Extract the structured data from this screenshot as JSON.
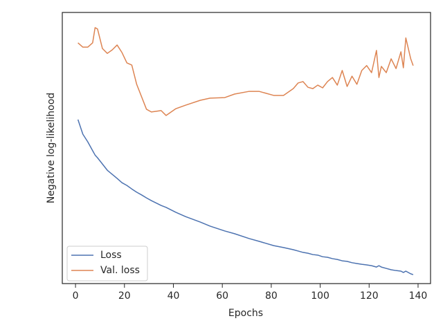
{
  "chart_data": {
    "type": "line",
    "xlabel": "Epochs",
    "ylabel": "Negative log-likelihood",
    "x": [
      1,
      3,
      5,
      7,
      8,
      9,
      11,
      13,
      15,
      17,
      19,
      21,
      23,
      25,
      27,
      29,
      31,
      35,
      37,
      41,
      45,
      51,
      55,
      61,
      65,
      71,
      75,
      81,
      85,
      89,
      91,
      93,
      95,
      97,
      99,
      101,
      103,
      105,
      107,
      109,
      111,
      113,
      115,
      117,
      119,
      121,
      123,
      124,
      125,
      127,
      129,
      131,
      133,
      134,
      135,
      137,
      138
    ],
    "series": [
      {
        "name": "Loss",
        "color": "#4c72b0",
        "values": [
          60.5,
          55.1,
          52.3,
          49.0,
          47.4,
          46.4,
          44.1,
          41.8,
          40.3,
          38.8,
          37.2,
          36.2,
          34.9,
          33.7,
          32.7,
          31.6,
          30.6,
          28.8,
          28.1,
          26.3,
          24.7,
          22.7,
          21.2,
          19.4,
          18.4,
          16.6,
          15.6,
          14.0,
          13.3,
          12.5,
          12.0,
          11.5,
          11.2,
          10.7,
          10.5,
          9.9,
          9.7,
          9.2,
          8.9,
          8.4,
          8.2,
          7.7,
          7.4,
          7.1,
          6.9,
          6.6,
          6.1,
          6.6,
          6.1,
          5.6,
          5.1,
          4.8,
          4.6,
          4.1,
          4.6,
          3.6,
          3.3
        ]
      },
      {
        "name": "Val. loss",
        "color": "#dd8452",
        "values": [
          88.8,
          87.2,
          87.2,
          88.8,
          94.4,
          93.9,
          86.7,
          84.9,
          86.2,
          88.0,
          85.2,
          81.4,
          80.6,
          73.5,
          68.9,
          64.3,
          63.3,
          63.8,
          62.0,
          64.5,
          65.8,
          67.6,
          68.4,
          68.6,
          69.9,
          70.9,
          70.9,
          69.4,
          69.4,
          71.9,
          74.0,
          74.5,
          72.4,
          71.9,
          73.2,
          72.2,
          74.5,
          76.0,
          73.2,
          78.6,
          72.7,
          76.5,
          73.5,
          78.6,
          80.4,
          77.8,
          86.0,
          76.0,
          80.1,
          77.8,
          82.9,
          79.3,
          85.5,
          79.6,
          90.6,
          82.9,
          80.4
        ]
      }
    ],
    "xlim": [
      -5.4,
      145.1
    ],
    "xticks": [
      0,
      20,
      40,
      60,
      80,
      100,
      120,
      140
    ],
    "ylim": [
      0,
      100
    ],
    "legend": "lower left"
  }
}
